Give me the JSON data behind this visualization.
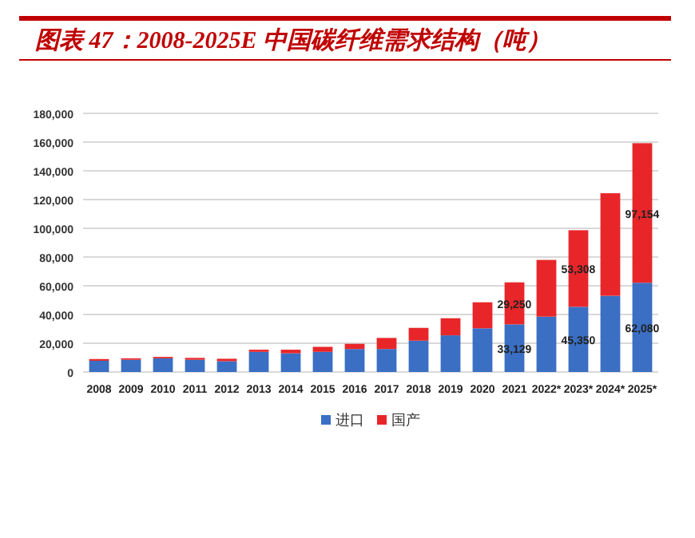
{
  "chart_data": {
    "type": "bar",
    "title": "图表 47：2008-2025E 中国碳纤维需求结构（吨）",
    "categories": [
      "2008",
      "2009",
      "2010",
      "2011",
      "2012",
      "2013",
      "2014",
      "2015",
      "2016",
      "2017",
      "2018",
      "2019",
      "2020",
      "2021",
      "2022*",
      "2023*",
      "2024*",
      "2025*"
    ],
    "stacked": true,
    "series": [
      {
        "name": "进口",
        "color": "#3a6fc4",
        "values": [
          7800,
          8500,
          9500,
          8500,
          7500,
          14000,
          13000,
          14000,
          16000,
          16000,
          21800,
          25500,
          30400,
          33129,
          38500,
          45350,
          53000,
          62080
        ],
        "value_labels": [
          null,
          null,
          null,
          null,
          null,
          null,
          null,
          null,
          null,
          null,
          null,
          null,
          null,
          "33,129",
          null,
          "45,350",
          null,
          "62,080"
        ]
      },
      {
        "name": "国产",
        "color": "#e8262a",
        "values": [
          1200,
          1000,
          1000,
          1300,
          1700,
          1500,
          2500,
          3500,
          3600,
          7700,
          8900,
          11900,
          18100,
          29250,
          39500,
          53308,
          71400,
          97154
        ],
        "value_labels": [
          null,
          null,
          null,
          null,
          null,
          null,
          null,
          null,
          null,
          null,
          null,
          null,
          null,
          "29,250",
          null,
          "53,308",
          null,
          "97,154"
        ]
      }
    ],
    "ylim": [
      0,
      180000
    ],
    "yticks": [
      {
        "value": 0,
        "label": "0"
      },
      {
        "value": 20000,
        "label": "20,000"
      },
      {
        "value": 40000,
        "label": "40,000"
      },
      {
        "value": 60000,
        "label": "60,000"
      },
      {
        "value": 80000,
        "label": "80,000"
      },
      {
        "value": 100000,
        "label": "100,000"
      },
      {
        "value": 120000,
        "label": "120,000"
      },
      {
        "value": 140000,
        "label": "140,000"
      },
      {
        "value": 160000,
        "label": "160,000"
      },
      {
        "value": 180000,
        "label": "180,000"
      }
    ],
    "grid": "y",
    "legend": "bottom"
  }
}
